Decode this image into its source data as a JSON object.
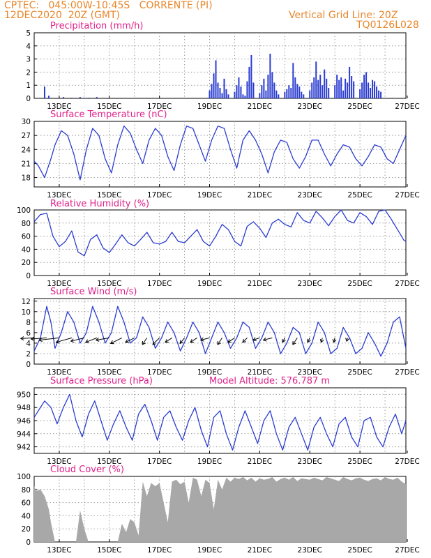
{
  "header": {
    "line1": "CPTEC:   045:00W-10:45S   CORRENTE (PI)",
    "line2": "12DEC2020  20Z (GMT)",
    "grid_note": "Vertical Grid Line: 20Z",
    "run_id": "TQ0126L028"
  },
  "colors": {
    "header": "#e8862a",
    "title": "#e0208a",
    "line": "#2a3cd0",
    "cloud": "#a8a8a8",
    "grid": "#9a9a9a"
  },
  "chart_data": [
    {
      "id": "precipitation",
      "type": "bar",
      "title": "Precipitation (mm/h)",
      "x_tick_labels": [
        "13DEC",
        "15DEC",
        "17DEC",
        "19DEC",
        "21DEC",
        "23DEC",
        "25DEC",
        "27DEC"
      ],
      "ylim": [
        0,
        5
      ],
      "yticks": [
        "0",
        "1",
        "2",
        "3",
        "4",
        "5"
      ],
      "x_hours": [
        -10,
        -6,
        8,
        16,
        24,
        32,
        40,
        148,
        150,
        152,
        154,
        156,
        158,
        160,
        162,
        164,
        166,
        172,
        174,
        176,
        178,
        180,
        182,
        184,
        186,
        188,
        190,
        196,
        198,
        200,
        202,
        204,
        206,
        208,
        210,
        212,
        214,
        220,
        222,
        224,
        226,
        228,
        230,
        232,
        234,
        236,
        238,
        244,
        246,
        248,
        250,
        252,
        254,
        256,
        258,
        260,
        262,
        268,
        270,
        272,
        274,
        276,
        278,
        280,
        282,
        284,
        286,
        292,
        294,
        296,
        298,
        300,
        302,
        304,
        306,
        308,
        310,
        312
      ],
      "values": [
        0.9,
        0.2,
        0.1,
        0.05,
        0.1,
        0.05,
        0.1,
        0.6,
        1.1,
        1.9,
        2.9,
        1.2,
        0.8,
        0.4,
        1.5,
        0.7,
        0.3,
        0.5,
        1.0,
        1.6,
        0.9,
        0.3,
        0.2,
        1.3,
        2.4,
        3.3,
        1.2,
        0.4,
        1.0,
        1.5,
        0.6,
        1.8,
        3.4,
        2.0,
        1.2,
        0.6,
        0.3,
        0.5,
        0.7,
        1.0,
        0.8,
        2.7,
        1.6,
        1.1,
        0.9,
        0.5,
        0.3,
        0.6,
        1.2,
        1.6,
        2.8,
        1.4,
        1.8,
        1.0,
        2.2,
        1.5,
        0.8,
        1.0,
        1.8,
        1.4,
        1.6,
        0.6,
        1.5,
        1.2,
        2.4,
        1.7,
        1.3,
        0.7,
        1.2,
        1.8,
        2.0,
        1.2,
        0.8,
        1.4,
        1.3,
        0.9,
        0.6,
        0.5
      ]
    },
    {
      "id": "temperature",
      "type": "line",
      "title": "Surface Temperature (nC)",
      "x_tick_labels": [
        "13DEC",
        "15DEC",
        "17DEC",
        "19DEC",
        "21DEC",
        "23DEC",
        "25DEC",
        "27DEC"
      ],
      "ylim": [
        16,
        30
      ],
      "yticks": [
        "18",
        "21",
        "24",
        "27",
        "30"
      ],
      "x_hours": [
        -20,
        -16,
        -10,
        -4,
        0,
        6,
        12,
        18,
        24,
        30,
        36,
        42,
        48,
        54,
        60,
        66,
        72,
        78,
        84,
        90,
        96,
        102,
        108,
        114,
        120,
        126,
        132,
        138,
        144,
        150,
        156,
        162,
        168,
        174,
        180,
        186,
        192,
        198,
        204,
        210,
        216,
        222,
        228,
        234,
        240,
        246,
        252,
        258,
        264,
        270,
        276,
        282,
        288,
        294,
        300,
        306,
        312,
        318,
        324,
        330,
        336
      ],
      "values": [
        21.5,
        20.5,
        18,
        22,
        25,
        28,
        27,
        23,
        17.5,
        24,
        28.5,
        27,
        22,
        19,
        25,
        29,
        27.5,
        24,
        21,
        26,
        28.5,
        27,
        22.5,
        19.5,
        25,
        29,
        28.5,
        25,
        21.5,
        26,
        29,
        28.5,
        24,
        20,
        26,
        28,
        26,
        23,
        19,
        23.5,
        26,
        25.5,
        22,
        20,
        22.5,
        26,
        26,
        23,
        20.5,
        23,
        25,
        24.5,
        22,
        20.5,
        22.5,
        25,
        24.5,
        22,
        21,
        24,
        27
      ]
    },
    {
      "id": "humidity",
      "type": "line",
      "title": "Relative Humidity (%)",
      "x_tick_labels": [
        "13DEC",
        "15DEC",
        "17DEC",
        "19DEC",
        "21DEC",
        "23DEC",
        "25DEC",
        "27DEC"
      ],
      "ylim": [
        0,
        100
      ],
      "yticks": [
        "0",
        "20",
        "40",
        "60",
        "80",
        "100"
      ],
      "x_hours": [
        -20,
        -14,
        -8,
        -2,
        4,
        10,
        16,
        22,
        28,
        34,
        40,
        46,
        52,
        58,
        64,
        70,
        76,
        82,
        88,
        94,
        100,
        106,
        112,
        118,
        124,
        130,
        136,
        142,
        148,
        154,
        160,
        166,
        172,
        178,
        184,
        190,
        196,
        202,
        208,
        214,
        220,
        226,
        232,
        238,
        244,
        250,
        256,
        262,
        268,
        274,
        280,
        286,
        292,
        298,
        304,
        310,
        316,
        322,
        328,
        334,
        340
      ],
      "values": [
        82,
        93,
        95,
        60,
        44,
        52,
        68,
        36,
        30,
        55,
        62,
        42,
        35,
        48,
        62,
        50,
        45,
        55,
        66,
        50,
        48,
        52,
        66,
        52,
        50,
        60,
        70,
        52,
        45,
        60,
        78,
        70,
        52,
        45,
        75,
        82,
        72,
        58,
        80,
        86,
        78,
        74,
        96,
        84,
        80,
        98,
        88,
        76,
        90,
        100,
        84,
        80,
        96,
        90,
        78,
        98,
        100,
        86,
        70,
        54,
        52
      ]
    },
    {
      "id": "wind",
      "type": "line",
      "title": "Surface Wind (m/s)",
      "x_tick_labels": [
        "13DEC",
        "15DEC",
        "17DEC",
        "19DEC",
        "21DEC",
        "23DEC",
        "25DEC",
        "27DEC"
      ],
      "ylim": [
        0,
        12.5
      ],
      "yticks": [
        "0",
        "2",
        "4",
        "6",
        "8",
        "10",
        "12"
      ],
      "x_hours": [
        -20,
        -14,
        -8,
        -4,
        0,
        6,
        12,
        18,
        24,
        30,
        36,
        42,
        48,
        54,
        60,
        66,
        72,
        78,
        84,
        90,
        96,
        102,
        108,
        114,
        120,
        126,
        132,
        138,
        144,
        150,
        156,
        162,
        168,
        174,
        180,
        186,
        192,
        198,
        204,
        210,
        216,
        222,
        228,
        234,
        240,
        246,
        252,
        258,
        264,
        270,
        276,
        282,
        288,
        294,
        300,
        306,
        312,
        318,
        324,
        330,
        336
      ],
      "values": [
        2.5,
        5,
        11,
        8,
        3,
        6,
        10,
        8,
        4,
        6,
        11,
        8,
        4,
        6,
        11,
        8,
        4,
        5,
        9,
        7,
        3,
        5,
        8,
        6,
        2.5,
        5,
        8,
        6,
        2,
        5,
        8,
        6,
        3,
        5,
        8,
        7,
        3,
        5,
        8,
        6,
        2,
        4,
        7,
        6,
        2,
        4,
        8,
        6,
        2,
        3,
        7,
        5,
        2,
        3,
        6,
        4,
        1.5,
        4,
        8,
        9,
        3
      ],
      "vectors": [
        {
          "h": -20,
          "u": 6,
          "v": 0.3
        },
        {
          "h": -8,
          "u": 7,
          "v": 0.5
        },
        {
          "h": 4,
          "u": 9,
          "v": 1
        },
        {
          "h": 16,
          "u": 7,
          "v": 2
        },
        {
          "h": 28,
          "u": 6,
          "v": 1.5
        },
        {
          "h": 40,
          "u": 5,
          "v": 2
        },
        {
          "h": 52,
          "u": 6,
          "v": 1
        },
        {
          "h": 64,
          "u": 5,
          "v": 2.5
        },
        {
          "h": 76,
          "u": 4,
          "v": 2
        },
        {
          "h": 88,
          "u": 2,
          "v": 3
        },
        {
          "h": 100,
          "u": 3,
          "v": 3
        },
        {
          "h": 112,
          "u": 3,
          "v": 2
        },
        {
          "h": 124,
          "u": 2,
          "v": 2.5
        },
        {
          "h": 136,
          "u": 3,
          "v": 2
        },
        {
          "h": 148,
          "u": 4,
          "v": 1
        },
        {
          "h": 160,
          "u": 2,
          "v": 3
        },
        {
          "h": 172,
          "u": 3,
          "v": 2
        },
        {
          "h": 184,
          "u": 2,
          "v": 2
        },
        {
          "h": 196,
          "u": 3,
          "v": 1
        },
        {
          "h": 208,
          "u": 4,
          "v": 1
        },
        {
          "h": 220,
          "u": 1,
          "v": 2
        },
        {
          "h": 232,
          "u": 2,
          "v": 3
        },
        {
          "h": 244,
          "u": 1,
          "v": 2
        },
        {
          "h": 256,
          "u": 0.5,
          "v": 2
        },
        {
          "h": 268,
          "u": 0.5,
          "v": 2
        },
        {
          "h": 280,
          "u": 0.3,
          "v": 1.5
        }
      ]
    },
    {
      "id": "pressure",
      "type": "line",
      "title": "Surface Pressure (hPa)",
      "annotation": "Model Altitude: 576.787  m",
      "x_tick_labels": [
        "13DEC",
        "15DEC",
        "17DEC",
        "19DEC",
        "21DEC",
        "23DEC",
        "25DEC",
        "27DEC"
      ],
      "ylim": [
        941,
        951
      ],
      "yticks": [
        "942",
        "944",
        "946",
        "948",
        "950"
      ],
      "x_hours": [
        -20,
        -16,
        -10,
        -4,
        2,
        8,
        14,
        20,
        26,
        32,
        38,
        44,
        50,
        56,
        62,
        68,
        74,
        80,
        86,
        92,
        98,
        104,
        110,
        116,
        122,
        128,
        134,
        140,
        146,
        152,
        158,
        164,
        170,
        176,
        182,
        188,
        194,
        200,
        206,
        212,
        218,
        224,
        230,
        236,
        242,
        248,
        254,
        260,
        266,
        272,
        278,
        284,
        290,
        296,
        302,
        308,
        314,
        320,
        326,
        332,
        336
      ],
      "values": [
        946.5,
        947.5,
        949,
        948,
        945.5,
        948,
        950,
        946,
        943.5,
        947,
        949,
        946,
        943,
        945.5,
        947.5,
        945,
        943,
        947,
        948.5,
        946,
        943,
        946.5,
        947.5,
        945,
        943,
        946,
        948,
        944.5,
        942,
        946.5,
        947.5,
        944,
        941.5,
        945,
        947.5,
        945,
        942.5,
        946,
        947.5,
        944,
        941.5,
        945,
        946.5,
        944,
        941.5,
        945,
        946.5,
        944,
        942,
        945.5,
        946.5,
        943.5,
        942,
        946,
        946.5,
        943.5,
        942,
        945,
        947,
        944,
        946
      ]
    },
    {
      "id": "cloud",
      "type": "area",
      "title": "Cloud Cover (%)",
      "x_tick_labels": [
        "13DEC",
        "15DEC",
        "17DEC",
        "19DEC",
        "21DEC",
        "23DEC",
        "25DEC",
        "27DEC"
      ],
      "ylim": [
        0,
        100
      ],
      "yticks": [
        "0",
        "20",
        "40",
        "60",
        "80",
        "100"
      ],
      "x_hours": [
        -20,
        -18,
        -14,
        -10,
        -6,
        -4,
        -2,
        0,
        4,
        8,
        12,
        16,
        20,
        24,
        28,
        32,
        36,
        40,
        44,
        48,
        52,
        56,
        60,
        64,
        68,
        72,
        76,
        80,
        84,
        88,
        92,
        96,
        100,
        104,
        108,
        112,
        116,
        120,
        124,
        128,
        132,
        136,
        140,
        144,
        148,
        152,
        156,
        160,
        164,
        168,
        172,
        176,
        180,
        184,
        188,
        192,
        196,
        200,
        204,
        208,
        212,
        216,
        220,
        224,
        228,
        232,
        236,
        240,
        244,
        248,
        252,
        256,
        260,
        264,
        268,
        272,
        276,
        280,
        284,
        288,
        292,
        296,
        300,
        304,
        308,
        312,
        316,
        320,
        324,
        328,
        332,
        336
      ],
      "values": [
        85,
        78,
        80,
        70,
        50,
        30,
        15,
        0,
        0,
        0,
        0,
        0,
        0,
        48,
        20,
        0,
        0,
        0,
        0,
        0,
        0,
        0,
        0,
        28,
        15,
        35,
        30,
        10,
        92,
        70,
        90,
        85,
        90,
        60,
        30,
        92,
        95,
        88,
        92,
        60,
        98,
        95,
        70,
        95,
        90,
        50,
        95,
        80,
        98,
        92,
        98,
        96,
        99,
        94,
        98,
        92,
        97,
        95,
        96,
        99,
        92,
        96,
        98,
        95,
        99,
        93,
        97,
        96,
        95,
        98,
        96,
        94,
        99,
        97,
        95,
        93,
        99,
        96,
        94,
        97,
        98,
        95,
        93,
        96,
        97,
        94,
        99,
        96,
        95,
        98,
        92,
        88
      ]
    }
  ]
}
